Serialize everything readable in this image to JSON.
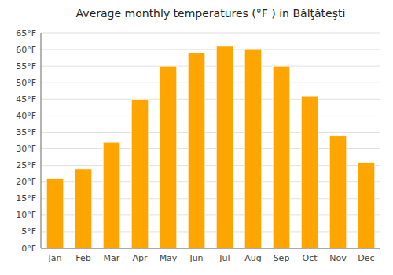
{
  "chart_data": {
    "type": "bar",
    "title": "Average monthly temperatures (°F ) in Bălţăteşti",
    "categories": [
      "Jan",
      "Feb",
      "Mar",
      "Apr",
      "May",
      "Jun",
      "Jul",
      "Aug",
      "Sep",
      "Oct",
      "Nov",
      "Dec"
    ],
    "values": [
      21,
      24,
      32,
      45,
      55,
      59,
      61,
      60,
      55,
      46,
      34,
      26
    ],
    "color": "#FFA500",
    "ylim": [
      0,
      65
    ],
    "yticks": [
      {
        "value": 0,
        "label": "0°F"
      },
      {
        "value": 5,
        "label": "5°F"
      },
      {
        "value": 10,
        "label": "10°F"
      },
      {
        "value": 15,
        "label": "15°F"
      },
      {
        "value": 20,
        "label": "20°F"
      },
      {
        "value": 25,
        "label": "25°F"
      },
      {
        "value": 30,
        "label": "30°F"
      },
      {
        "value": 35,
        "label": "35°F"
      },
      {
        "value": 40,
        "label": "40°F"
      },
      {
        "value": 45,
        "label": "45°F"
      },
      {
        "value": 50,
        "label": "50°F"
      },
      {
        "value": 55,
        "label": "55°F"
      },
      {
        "value": 60,
        "label": "60°F"
      },
      {
        "value": 65,
        "label": "65°F"
      }
    ],
    "grid": true
  }
}
